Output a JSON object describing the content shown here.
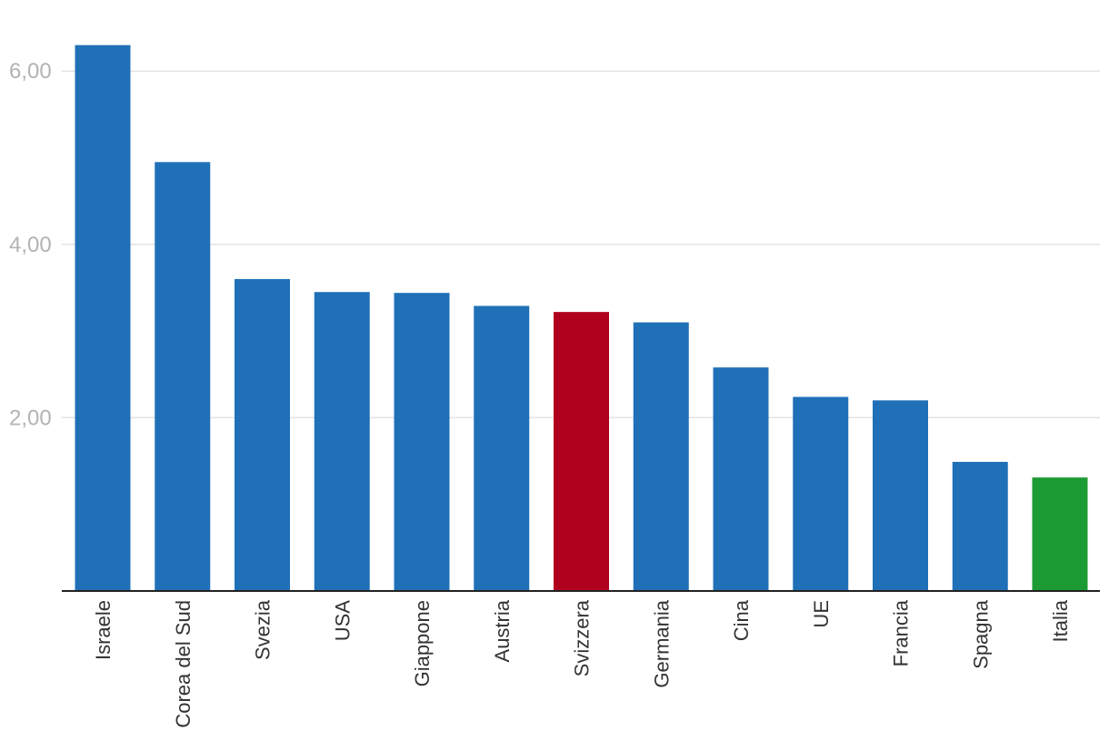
{
  "chart_data": {
    "type": "bar",
    "title": "",
    "xlabel": "",
    "ylabel": "",
    "categories": [
      "Israele",
      "Corea del Sud",
      "Svezia",
      "USA",
      "Giappone",
      "Austria",
      "Svizzera",
      "Germania",
      "Cina",
      "UE",
      "Francia",
      "Spagna",
      "Italia"
    ],
    "values": [
      6.3,
      4.95,
      3.6,
      3.45,
      3.44,
      3.29,
      3.22,
      3.1,
      2.58,
      2.24,
      2.2,
      1.49,
      1.31
    ],
    "colors": [
      "#2070b8",
      "#2070b8",
      "#2070b8",
      "#2070b8",
      "#2070b8",
      "#2070b8",
      "#b0001e",
      "#2070b8",
      "#2070b8",
      "#2070b8",
      "#2070b8",
      "#2070b8",
      "#1c9a34"
    ],
    "ylim": [
      0,
      6.6
    ],
    "yticks": [
      2,
      4,
      6
    ],
    "ytick_labels": [
      "2,00",
      "4,00",
      "6,00"
    ],
    "grid": true,
    "legend": "none"
  }
}
